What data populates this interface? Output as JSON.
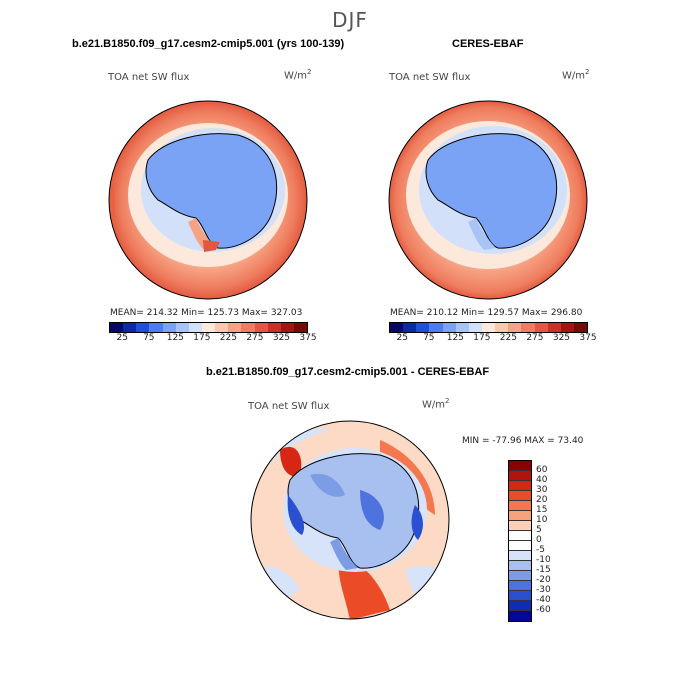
{
  "season": "DJF",
  "panels": [
    {
      "title": "b.e21.B1850.f09_g17.cesm2-cmip5.001 (yrs 100-139)",
      "variable": "TOA net SW flux",
      "units_base": "W/m",
      "units_exp": "2",
      "stats": "MEAN= 214.32   Min= 125.73   Max= 327.03"
    },
    {
      "title": "CERES-EBAF",
      "variable": "TOA net SW flux",
      "units_base": "W/m",
      "units_exp": "2",
      "stats": "MEAN= 210.12   Min= 129.57   Max= 296.80"
    },
    {
      "title": "b.e21.B1850.f09_g17.cesm2-cmip5.001 - CERES-EBAF",
      "variable": "TOA net SW flux",
      "units_base": "W/m",
      "units_exp": "2",
      "stats": "MIN = -77.96 MAX =  73.40"
    }
  ],
  "abs_colorbar": {
    "colors": [
      "#08086b",
      "#0b2ba6",
      "#1c52d6",
      "#4a7ef2",
      "#7aa3f5",
      "#a8c4f7",
      "#d2e0fa",
      "#fde9dc",
      "#fbc8ad",
      "#f6a283",
      "#ee7c5d",
      "#e2573d",
      "#c83222",
      "#a41510",
      "#780a05"
    ],
    "tick_labels": [
      "25",
      "75",
      "125",
      "175",
      "225",
      "275",
      "325",
      "375"
    ]
  },
  "diff_colorbar": {
    "colors": [
      "#8b0000",
      "#b4120e",
      "#d62715",
      "#ec4b28",
      "#f4774d",
      "#f6a27b",
      "#fbd0b6",
      "#ffffff",
      "#ffffff",
      "#d6e3f8",
      "#a8c0ef",
      "#7c9ce6",
      "#4f73de",
      "#2a4fd1",
      "#0f2cb8",
      "#03069a"
    ],
    "tick_labels": [
      "60",
      "40",
      "30",
      "20",
      "15",
      "10",
      "5",
      "0",
      "-5",
      "-10",
      "-15",
      "-20",
      "-30",
      "-40",
      "-60"
    ]
  }
}
